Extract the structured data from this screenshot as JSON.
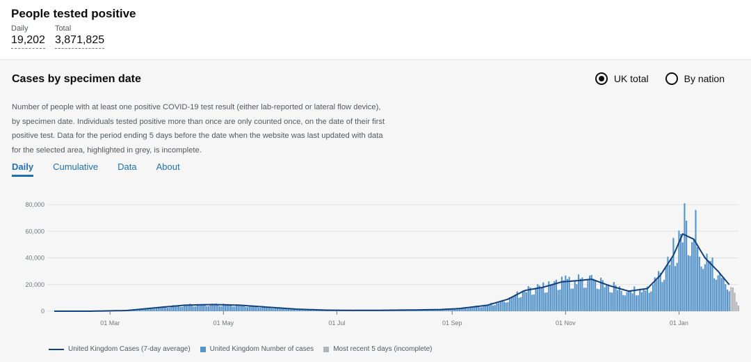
{
  "headline": {
    "title": "People tested positive",
    "daily_label": "Daily",
    "daily_value": "19,202",
    "total_label": "Total",
    "total_value": "3,871,825"
  },
  "card": {
    "title": "Cases by specimen date",
    "radios": [
      {
        "label": "UK total",
        "checked": true
      },
      {
        "label": "By nation",
        "checked": false
      }
    ],
    "description": "Number of people with at least one positive COVID-19 test result (either lab-reported or lateral flow device), by specimen date. Individuals tested positive more than once are only counted once, on the date of their first positive test. Data for the period ending 5 days before the date when the website was last updated with data for the selected area, highlighted in grey, is incomplete.",
    "tabs": [
      {
        "label": "Daily",
        "active": true
      },
      {
        "label": "Cumulative",
        "active": false
      },
      {
        "label": "Data",
        "active": false
      },
      {
        "label": "About",
        "active": false
      }
    ]
  },
  "chart_data": {
    "type": "bar",
    "x_ticks": [
      "01 Mar",
      "01 May",
      "01 Jul",
      "01 Sep",
      "01 Nov",
      "01 Jan"
    ],
    "y_ticks": [
      "80,000",
      "60,000",
      "40,000",
      "20,000",
      "0"
    ],
    "ylim": [
      0,
      85000
    ],
    "grid": true,
    "colors": {
      "bars": "#5694ca",
      "line": "#12407f",
      "incomplete": "#b1b4b6"
    },
    "legend": [
      {
        "label": "United Kingdom Cases (7-day average)",
        "kind": "line",
        "color": "#12407f"
      },
      {
        "label": "United Kingdom Number of cases",
        "kind": "box",
        "color": "#5694ca"
      },
      {
        "label": "Most recent 5 days (incomplete)",
        "kind": "box",
        "color": "#b1b4b6"
      }
    ],
    "series_anchors": {
      "dates": [
        "2020-01-31",
        "2020-02-20",
        "2020-03-10",
        "2020-03-25",
        "2020-04-10",
        "2020-04-25",
        "2020-05-10",
        "2020-05-25",
        "2020-06-10",
        "2020-06-25",
        "2020-07-10",
        "2020-07-25",
        "2020-08-10",
        "2020-08-25",
        "2020-09-05",
        "2020-09-20",
        "2020-10-01",
        "2020-10-10",
        "2020-10-20",
        "2020-10-30",
        "2020-11-08",
        "2020-11-15",
        "2020-11-25",
        "2020-12-05",
        "2020-12-15",
        "2020-12-22",
        "2020-12-29",
        "2021-01-03",
        "2021-01-09",
        "2021-01-15",
        "2021-01-22",
        "2021-01-28"
      ],
      "average": [
        0,
        0,
        500,
        2500,
        4500,
        5000,
        4500,
        3000,
        1500,
        800,
        600,
        700,
        900,
        1200,
        2000,
        4500,
        9000,
        15500,
        18000,
        22000,
        23000,
        24000,
        19000,
        15000,
        17000,
        27000,
        42000,
        58000,
        54000,
        40000,
        30000,
        20000
      ]
    },
    "incomplete_from": "2021-01-29",
    "last_date": "2021-02-02"
  }
}
